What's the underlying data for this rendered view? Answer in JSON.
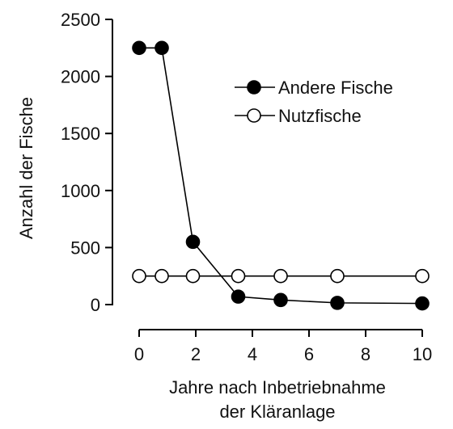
{
  "chart_data": {
    "type": "line",
    "title": "",
    "xlabel": [
      "Jahre nach Inbetriebnahme",
      "der Kläranlage"
    ],
    "ylabel": "Anzahl der Fische",
    "xlim": [
      0,
      10
    ],
    "ylim": [
      0,
      2500
    ],
    "x_ticks": [
      "0",
      "2",
      "4",
      "6",
      "8",
      "10"
    ],
    "y_ticks": [
      "0",
      "500",
      "1000",
      "1500",
      "2000",
      "2500"
    ],
    "grid": false,
    "legend_position": "top-right",
    "series": [
      {
        "name": "Andere Fische",
        "marker": "filled-circle",
        "color": "#000000",
        "x": [
          0,
          0.8,
          1.9,
          3.5,
          5,
          7,
          10
        ],
        "y": [
          2250,
          2250,
          550,
          70,
          40,
          15,
          10
        ]
      },
      {
        "name": "Nutzfische",
        "marker": "open-circle",
        "color": "#000000",
        "x": [
          0,
          0.8,
          1.9,
          3.5,
          5,
          7,
          10
        ],
        "y": [
          250,
          250,
          250,
          250,
          250,
          250,
          250
        ]
      }
    ]
  }
}
